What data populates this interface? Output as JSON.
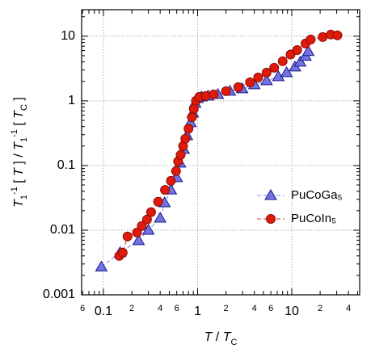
{
  "chart_data": {
    "type": "line",
    "xscale": "log",
    "yscale": "log",
    "grid": true,
    "x_label": [
      {
        "text": "T",
        "italic": true
      },
      {
        "text": " / "
      },
      {
        "text": "T",
        "italic": true
      },
      {
        "text": "C",
        "sub": true
      }
    ],
    "y_label": [
      {
        "text": "T",
        "italic": true
      },
      {
        "text": "1",
        "sub": true
      },
      {
        "text": "-1",
        "sup": true
      },
      {
        "text": " [ "
      },
      {
        "text": "T",
        "italic": true
      },
      {
        "text": " ] / "
      },
      {
        "text": "T",
        "italic": true
      },
      {
        "text": "1",
        "sub": true
      },
      {
        "text": "-1",
        "sup": true
      },
      {
        "text": " [ "
      },
      {
        "text": "T",
        "italic": true
      },
      {
        "text": "C",
        "sub": true
      },
      {
        "text": " ]"
      }
    ],
    "xlim": [
      0.0586,
      52.6
    ],
    "ylim": [
      0.001,
      25.7
    ],
    "xticks": [
      {
        "value": 0.06,
        "label": "6"
      },
      0.1,
      {
        "value": 0.2,
        "label": "2"
      },
      {
        "value": 0.4,
        "label": "4"
      },
      {
        "value": 0.6,
        "label": "6"
      },
      1,
      {
        "value": 2,
        "label": "2"
      },
      {
        "value": 4,
        "label": "4"
      },
      {
        "value": 6,
        "label": "6"
      },
      10,
      {
        "value": 20,
        "label": "2"
      },
      {
        "value": 40,
        "label": "4"
      }
    ],
    "xminor_ticks": [
      0.07,
      0.08,
      0.09,
      0.3,
      0.5,
      0.7,
      0.8,
      0.9,
      3,
      5,
      7,
      8,
      9,
      30,
      50
    ],
    "yticks": [
      0.001,
      0.01,
      0.1,
      1,
      10
    ],
    "yminor_ticks": [
      0.002,
      0.003,
      0.004,
      0.005,
      0.006,
      0.007,
      0.008,
      0.009,
      0.02,
      0.03,
      0.04,
      0.05,
      0.06,
      0.07,
      0.08,
      0.09,
      0.2,
      0.3,
      0.4,
      0.5,
      0.6,
      0.7,
      0.8,
      0.9,
      2,
      3,
      4,
      5,
      6,
      7,
      8,
      9,
      20
    ],
    "series": [
      {
        "name": "PuCoGa₅",
        "marker": "triangle",
        "color": "#7272e0",
        "edge": "#1a1a8c",
        "line_color": "#8a8ae8",
        "x": [
          0.095,
          0.15,
          0.236,
          0.3,
          0.4,
          0.445,
          0.52,
          0.6,
          0.65,
          0.71,
          0.77,
          0.84,
          0.89,
          0.94,
          1.0,
          1.1,
          1.29,
          1.64,
          2.2,
          2.97,
          4.0,
          5.4,
          7.2,
          8.8,
          10.8,
          12.3,
          14,
          15
        ],
        "values": [
          0.0027,
          0.0045,
          0.0069,
          0.01,
          0.0154,
          0.0266,
          0.042,
          0.065,
          0.109,
          0.178,
          0.29,
          0.46,
          0.65,
          0.92,
          1.09,
          1.15,
          1.19,
          1.26,
          1.41,
          1.54,
          1.78,
          2.05,
          2.37,
          2.74,
          3.35,
          3.98,
          4.9,
          5.8
        ]
      },
      {
        "name": "PuCoIn₅",
        "marker": "circle",
        "color": "#e01a0a",
        "edge": "#8c0e05",
        "line_color": "#e03020",
        "x": [
          0.147,
          0.16,
          0.18,
          0.227,
          0.255,
          0.29,
          0.32,
          0.38,
          0.45,
          0.52,
          0.59,
          0.62,
          0.66,
          0.7,
          0.74,
          0.8,
          0.87,
          0.91,
          0.96,
          1.04,
          1.22,
          1.48,
          2.0,
          2.7,
          3.6,
          4.4,
          5.4,
          6.5,
          8.0,
          9.7,
          11.4,
          14,
          15.9,
          21.3,
          26,
          30.5
        ],
        "values": [
          0.004,
          0.0045,
          0.008,
          0.0092,
          0.0116,
          0.0146,
          0.019,
          0.0275,
          0.042,
          0.058,
          0.082,
          0.116,
          0.146,
          0.2,
          0.26,
          0.37,
          0.56,
          0.75,
          1.0,
          1.15,
          1.19,
          1.26,
          1.41,
          1.63,
          1.94,
          2.3,
          2.74,
          3.25,
          4.1,
          5.2,
          6.1,
          7.7,
          8.9,
          9.7,
          10.6,
          10.3
        ]
      }
    ]
  }
}
